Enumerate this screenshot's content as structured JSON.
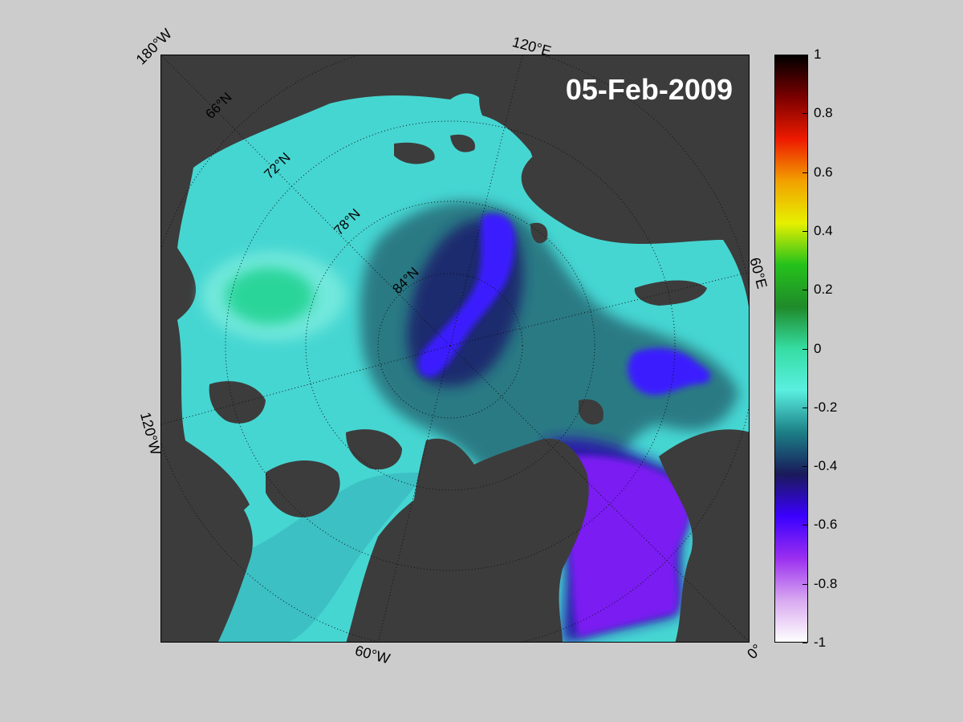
{
  "map": {
    "date": "05-Feb-2009",
    "longitude_labels": {
      "w180": "180°W",
      "e120": "120°E",
      "e60": "60°E",
      "w120": "120°W",
      "w60": "60°W",
      "zero": "0°"
    },
    "latitude_labels": [
      "66°N",
      "72°N",
      "78°N",
      "84°N"
    ]
  },
  "colorbar": {
    "ticks": [
      "1",
      "0.8",
      "0.6",
      "0.4",
      "0.2",
      "0",
      "-0.2",
      "-0.4",
      "-0.6",
      "-0.8",
      "-1"
    ],
    "range": [
      -1,
      1
    ],
    "colors": [
      "#ffffff",
      "#d8a8f0",
      "#9a2ef0",
      "#3a00ff",
      "#1a1a5a",
      "#1b7f86",
      "#5aefe0",
      "#35dda2",
      "#1f8a2a",
      "#25c21b",
      "#e6f000",
      "#f2a000",
      "#ee1a00",
      "#7a0000",
      "#000000"
    ],
    "background": "#cccccc",
    "land_color": "#3c3c3c"
  }
}
